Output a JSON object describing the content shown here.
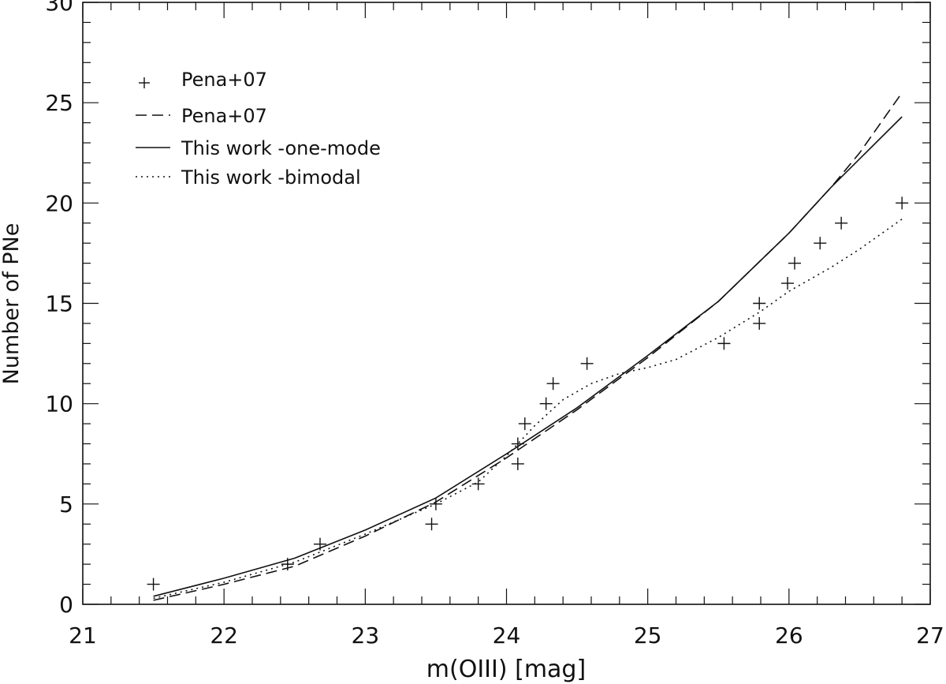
{
  "chart_data": {
    "type": "scatter",
    "xlabel": "m(OIII) [mag]",
    "ylabel": "Number of PNe",
    "xlim": [
      21,
      27
    ],
    "ylim": [
      0,
      30
    ],
    "x_ticks": [
      "21",
      "22",
      "23",
      "24",
      "25",
      "26",
      "27"
    ],
    "y_ticks": [
      "0",
      "5",
      "10",
      "15",
      "20",
      "25",
      "30"
    ],
    "grid": false,
    "legend_position": "top-left",
    "legend": [
      {
        "label": "Pena+07",
        "marker": "plus"
      },
      {
        "label": "Pena+07",
        "line": "dashed"
      },
      {
        "label": "This work -one-mode",
        "line": "solid"
      },
      {
        "label": "This work -bimodal",
        "line": "dotted"
      }
    ],
    "series": [
      {
        "name": "Pena+07",
        "kind": "points",
        "points": [
          [
            21.5,
            1
          ],
          [
            22.45,
            2
          ],
          [
            22.68,
            3
          ],
          [
            23.47,
            4
          ],
          [
            23.5,
            5
          ],
          [
            23.8,
            6
          ],
          [
            24.08,
            7
          ],
          [
            24.08,
            8
          ],
          [
            24.13,
            9
          ],
          [
            24.28,
            10
          ],
          [
            24.33,
            11
          ],
          [
            24.57,
            12
          ],
          [
            25.54,
            13
          ],
          [
            25.79,
            14
          ],
          [
            25.79,
            15
          ],
          [
            25.99,
            16
          ],
          [
            26.04,
            17
          ],
          [
            26.22,
            18
          ],
          [
            26.37,
            19
          ],
          [
            26.8,
            20
          ]
        ]
      },
      {
        "name": "Pena+07",
        "kind": "dashed",
        "points": [
          [
            21.5,
            0.2
          ],
          [
            22.0,
            1.0
          ],
          [
            22.5,
            1.9
          ],
          [
            23.0,
            3.4
          ],
          [
            23.5,
            5.1
          ],
          [
            24.0,
            7.3
          ],
          [
            24.5,
            9.7
          ],
          [
            25.0,
            12.3
          ],
          [
            25.5,
            15.1
          ],
          [
            26.0,
            18.5
          ],
          [
            26.3,
            20.8
          ],
          [
            26.5,
            22.5
          ],
          [
            26.8,
            25.5
          ]
        ]
      },
      {
        "name": "This work -one-mode",
        "kind": "solid",
        "points": [
          [
            21.5,
            0.4
          ],
          [
            22.0,
            1.3
          ],
          [
            22.5,
            2.3
          ],
          [
            23.0,
            3.7
          ],
          [
            23.5,
            5.3
          ],
          [
            24.0,
            7.5
          ],
          [
            24.5,
            9.8
          ],
          [
            25.0,
            12.4
          ],
          [
            25.5,
            15.1
          ],
          [
            26.0,
            18.5
          ],
          [
            26.3,
            20.8
          ],
          [
            26.5,
            22.2
          ],
          [
            26.8,
            24.3
          ]
        ]
      },
      {
        "name": "This work -bimodal",
        "kind": "dotted",
        "points": [
          [
            21.5,
            0.3
          ],
          [
            22.0,
            1.1
          ],
          [
            22.5,
            2.1
          ],
          [
            23.0,
            3.5
          ],
          [
            23.5,
            5.0
          ],
          [
            23.8,
            6.1
          ],
          [
            24.0,
            7.4
          ],
          [
            24.2,
            8.9
          ],
          [
            24.4,
            10.2
          ],
          [
            24.6,
            11.0
          ],
          [
            24.8,
            11.5
          ],
          [
            25.0,
            11.8
          ],
          [
            25.2,
            12.2
          ],
          [
            25.5,
            13.3
          ],
          [
            25.8,
            14.6
          ],
          [
            26.0,
            15.6
          ],
          [
            26.3,
            16.8
          ],
          [
            26.5,
            17.7
          ],
          [
            26.8,
            19.2
          ]
        ]
      }
    ]
  }
}
